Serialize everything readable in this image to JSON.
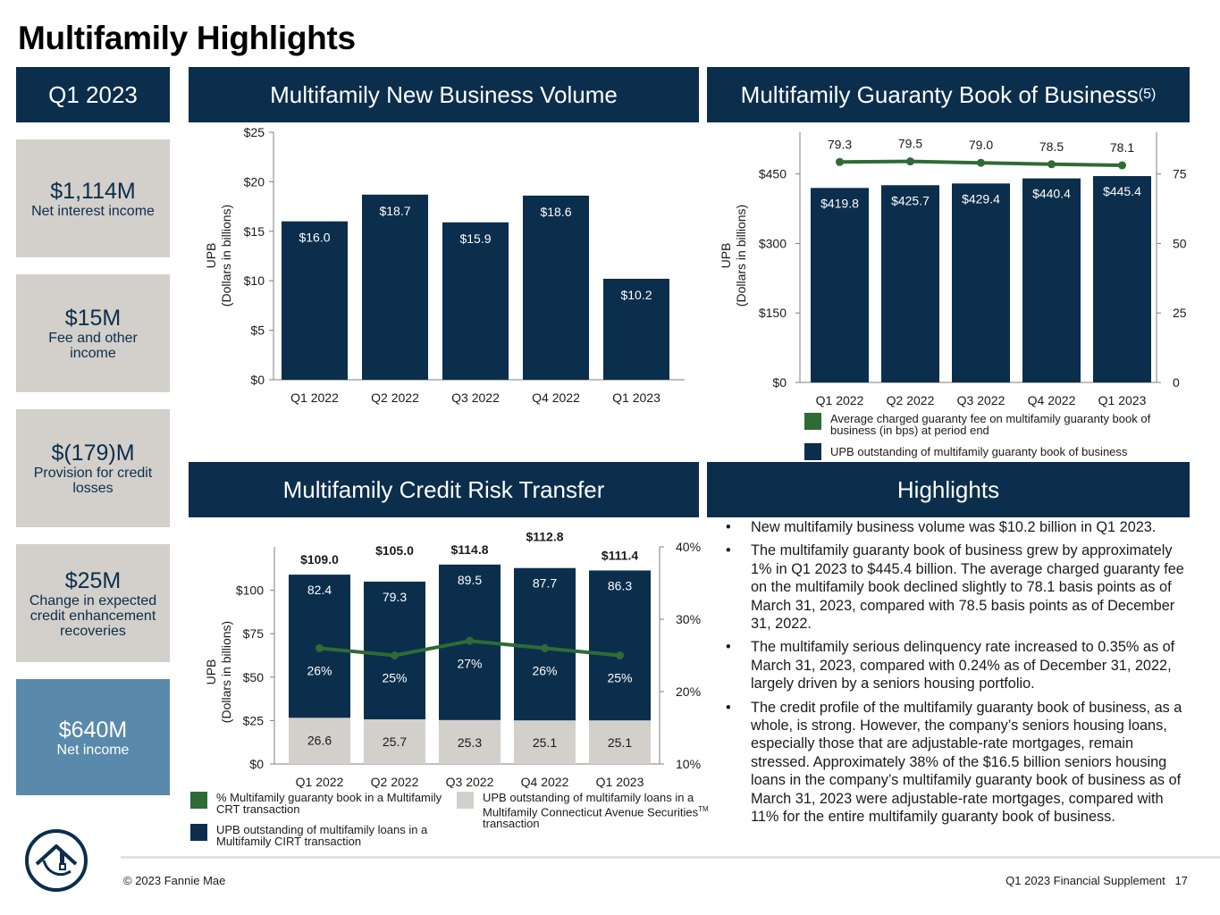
{
  "page": {
    "title": "Multifamily Highlights",
    "footer_left": "© 2023 Fannie Mae",
    "footer_right": "Q1 2023 Financial Supplement",
    "page_number": "17"
  },
  "headers": {
    "quarter": "Q1 2023",
    "new_business": "Multifamily New Business Volume",
    "guaranty_book": "Multifamily Guaranty Book of Business",
    "guaranty_book_note": "(5)",
    "crt": "Multifamily Credit Risk Transfer",
    "highlights": "Highlights"
  },
  "kpis": [
    {
      "value": "$1,114M",
      "label": "Net interest income"
    },
    {
      "value": "$15M",
      "label": "Fee and other income"
    },
    {
      "value": "$(179)M",
      "label": "Provision for credit losses"
    },
    {
      "value": "$25M",
      "label": "Change in expected credit enhancement recoveries"
    },
    {
      "value": "$640M",
      "label": "Net income"
    }
  ],
  "colors": {
    "navy": "#0b2e4c",
    "green": "#2e6b35",
    "gray": "#d3cfca",
    "net_income_blue": "#5a8aab"
  },
  "legend": {
    "gb_fee": "Average charged guaranty fee on multifamily guaranty book of business (in bps) at period end",
    "gb_upb": "UPB outstanding of multifamily guaranty book of business",
    "crt_pct": "% Multifamily guaranty book in a Multifamily CRT transaction",
    "crt_cirt": "UPB outstanding of multifamily loans in a Multifamily CIRT transaction",
    "crt_cas": "UPB outstanding of multifamily loans in a Multifamily Connecticut Avenue Securities",
    "crt_cas_tm": "TM",
    "crt_cas_tail": "transaction"
  },
  "highlights": [
    "New multifamily business volume was $10.2 billion in Q1 2023.",
    "The multifamily guaranty book of business grew by approximately 1% in Q1 2023 to $445.4 billion. The average charged guaranty fee on the multifamily book declined slightly to 78.1 basis points as of March 31, 2023, compared with 78.5 basis points as of December 31, 2022.",
    "The multifamily serious delinquency rate increased to 0.35% as of March 31, 2023, compared with 0.24% as of December 31, 2022, largely driven by a seniors housing portfolio.",
    "The credit profile of the multifamily guaranty book of business, as a whole, is strong. However, the company’s seniors housing loans, especially those that are adjustable-rate mortgages, remain stressed. Approximately 38% of the $16.5 billion seniors housing loans in the company’s multifamily guaranty book of business as of March 31, 2023 were adjustable-rate mortgages, compared with 11% for the entire multifamily guaranty book of business."
  ],
  "chart_data": [
    {
      "id": "new_business",
      "type": "bar",
      "title": "Multifamily New Business Volume",
      "ylabel": [
        "UPB",
        "(Dollars in billions)"
      ],
      "categories": [
        "Q1 2022",
        "Q2 2022",
        "Q3 2022",
        "Q4 2022",
        "Q1 2023"
      ],
      "values": [
        16.0,
        18.7,
        15.9,
        18.6,
        10.2
      ],
      "value_labels": [
        "$16.0",
        "$18.7",
        "$15.9",
        "$18.6",
        "$10.2"
      ],
      "ylim": [
        0,
        25
      ],
      "y_ticks": [
        0,
        5,
        10,
        15,
        20,
        25
      ],
      "y_tick_labels": [
        "$0",
        "$5",
        "$10",
        "$15",
        "$20",
        "$25"
      ]
    },
    {
      "id": "guaranty_book",
      "type": "bar+line",
      "title": "Multifamily Guaranty Book of Business",
      "ylabel": [
        "UPB",
        "(Dollars in billions)"
      ],
      "categories": [
        "Q1 2022",
        "Q2 2022",
        "Q3 2022",
        "Q4 2022",
        "Q1 2023"
      ],
      "bar_values": [
        419.8,
        425.7,
        429.4,
        440.4,
        445.4
      ],
      "bar_labels": [
        "$419.8",
        "$425.7",
        "$429.4",
        "$440.4",
        "$445.4"
      ],
      "line_values": [
        79.3,
        79.5,
        79.0,
        78.5,
        78.1
      ],
      "line_labels": [
        "79.3",
        "79.5",
        "79.0",
        "78.5",
        "78.1"
      ],
      "ylim": [
        0,
        540
      ],
      "y_ticks": [
        0,
        150,
        300,
        450
      ],
      "y_tick_labels": [
        "$0",
        "$150",
        "$300",
        "$450"
      ],
      "y2lim": [
        0,
        90
      ],
      "y2_ticks": [
        0,
        25,
        50,
        75
      ],
      "y2_tick_labels": [
        "0",
        "25",
        "50",
        "75"
      ]
    },
    {
      "id": "crt",
      "type": "stacked-bar+line",
      "title": "Multifamily Credit Risk Transfer",
      "ylabel": [
        "UPB",
        "(Dollars in billions)"
      ],
      "categories": [
        "Q1 2022",
        "Q2 2022",
        "Q3 2022",
        "Q4 2022",
        "Q1 2023"
      ],
      "series": [
        {
          "name": "UPB outstanding of multifamily loans in a Multifamily Connecticut Avenue Securities transaction",
          "values": [
            26.6,
            25.7,
            25.3,
            25.1,
            25.1
          ],
          "labels": [
            "26.6",
            "25.7",
            "25.3",
            "25.1",
            "25.1"
          ]
        },
        {
          "name": "UPB outstanding of multifamily loans in a Multifamily CIRT transaction",
          "values": [
            82.4,
            79.3,
            89.5,
            87.7,
            86.3
          ],
          "labels": [
            "82.4",
            "79.3",
            "89.5",
            "87.7",
            "86.3"
          ]
        }
      ],
      "totals": [
        "$109.0",
        "$105.0",
        "$114.8",
        "$112.8",
        "$111.4"
      ],
      "total_values": [
        109.0,
        105.0,
        114.8,
        112.8,
        111.4
      ],
      "line": {
        "name": "% Multifamily guaranty book in a Multifamily CRT transaction",
        "values": [
          26,
          25,
          27,
          26,
          25
        ],
        "labels": [
          "26%",
          "25%",
          "27%",
          "26%",
          "25%"
        ]
      },
      "ylim": [
        0,
        125
      ],
      "y_ticks": [
        0,
        25,
        50,
        75,
        100
      ],
      "y_tick_labels": [
        "$0",
        "$25",
        "$50",
        "$75",
        "$100"
      ],
      "y2lim": [
        10,
        40
      ],
      "y2_ticks": [
        10,
        20,
        30,
        40
      ],
      "y2_tick_labels": [
        "10%",
        "20%",
        "30%",
        "40%"
      ]
    }
  ]
}
